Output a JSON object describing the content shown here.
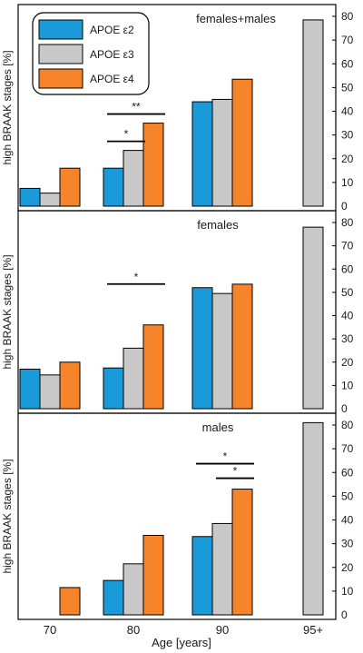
{
  "chart_data": {
    "type": "bar",
    "xlabel": "Age [years]",
    "categories": [
      "70",
      "80",
      "90",
      "95+"
    ],
    "ylim": [
      0,
      80
    ],
    "yticks": [
      10,
      20,
      30,
      40,
      50,
      60,
      70,
      80
    ],
    "y_axis_position": "right",
    "ylabel": "high BRAAK stages [%]",
    "legend": {
      "placement": "top-left (top panel)",
      "entries": [
        "APOE ε2",
        "APOE ε3",
        "APOE ε4"
      ]
    },
    "colors": {
      "APOE ε2": "#1a9ad9",
      "APOE ε3": "#c8c8c8",
      "APOE ε4": "#f7842a"
    },
    "panels": [
      {
        "title": "females+males",
        "series": [
          {
            "name": "APOE ε2",
            "values": [
              7.5,
              16,
              44,
              null
            ]
          },
          {
            "name": "APOE ε3",
            "values": [
              5.5,
              23.5,
              45,
              78.5
            ]
          },
          {
            "name": "APOE ε4",
            "values": [
              16,
              35,
              53.5,
              null
            ]
          }
        ],
        "significance": [
          {
            "label": "**",
            "category": "80",
            "from": "APOE ε2",
            "to": "APOE ε4"
          },
          {
            "label": "*",
            "category": "80",
            "from": "APOE ε2",
            "to": "APOE ε3"
          }
        ]
      },
      {
        "title": "females",
        "series": [
          {
            "name": "APOE ε2",
            "values": [
              17,
              17.5,
              52,
              null
            ]
          },
          {
            "name": "APOE ε3",
            "values": [
              14.5,
              26,
              49.5,
              78
            ]
          },
          {
            "name": "APOE ε4",
            "values": [
              20,
              36,
              53.5,
              null
            ]
          }
        ],
        "significance": [
          {
            "label": "*",
            "category": "80",
            "from": "APOE ε2",
            "to": "APOE ε4"
          }
        ]
      },
      {
        "title": "males",
        "series": [
          {
            "name": "APOE ε2",
            "values": [
              null,
              14.5,
              33,
              null
            ]
          },
          {
            "name": "APOE ε3",
            "values": [
              null,
              21.5,
              38.5,
              81
            ]
          },
          {
            "name": "APOE ε4",
            "values": [
              11.5,
              33.5,
              53,
              null
            ]
          }
        ],
        "significance": [
          {
            "label": "*",
            "category": "90",
            "from": "APOE ε2",
            "to": "APOE ε4"
          },
          {
            "label": "*",
            "category": "90",
            "from": "APOE ε3",
            "to": "APOE ε4"
          }
        ]
      }
    ]
  }
}
